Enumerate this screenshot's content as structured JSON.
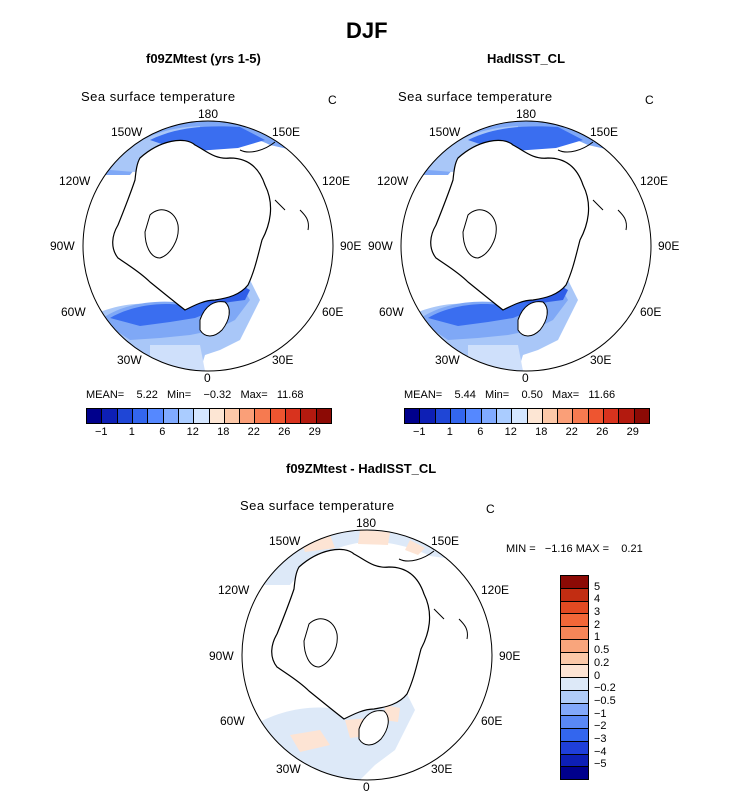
{
  "figure": {
    "title": "DJF"
  },
  "panels": [
    {
      "id": "model",
      "header": "f09ZMtest (yrs 1-5)",
      "variable": "Sea surface temperature",
      "units": "C",
      "stats": {
        "mean_label": "MEAN=",
        "mean": "5.22",
        "min_label": "Min=",
        "min": "−0.32",
        "max_label": "Max=",
        "max": "11.68"
      }
    },
    {
      "id": "obs",
      "header": "HadISST_CL",
      "variable": "Sea surface temperature",
      "units": "C",
      "stats": {
        "mean_label": "MEAN=",
        "mean": "5.44",
        "min_label": "Min=",
        "min": "0.50",
        "max_label": "Max=",
        "max": "11.66"
      }
    },
    {
      "id": "diff",
      "header": "f09ZMtest - HadISST_CL",
      "variable": "Sea surface temperature",
      "units": "C",
      "stats": {
        "min_label": "MIN =",
        "min": "−1.16",
        "max_label": "MAX =",
        "max": "0.21"
      }
    }
  ],
  "map_labels": {
    "top": "180",
    "bottom": "0",
    "left": "90W",
    "right": "90E",
    "upper_left": "150W",
    "upper_right": "150E",
    "mid_upper_left": "120W",
    "mid_upper_right": "120E",
    "mid_lower_left": "60W",
    "mid_lower_right": "60E",
    "lower_left": "30W",
    "lower_right": "30E"
  },
  "colorbar_abs": {
    "colors": [
      "#00008c",
      "#0d1fb5",
      "#1f46d6",
      "#3366ee",
      "#5588ff",
      "#80aaff",
      "#aaccff",
      "#d4e6ff",
      "#fde6d4",
      "#fcc8a8",
      "#fa9f78",
      "#f67a50",
      "#ee5530",
      "#d8331e",
      "#b31a0f",
      "#8c0a05"
    ],
    "tick_labels": [
      "−1",
      "1",
      "6",
      "12",
      "18",
      "22",
      "26",
      "29"
    ]
  },
  "colorbar_diff": {
    "colors": [
      "#00008c",
      "#0d1fb5",
      "#1f3fd9",
      "#3366ee",
      "#5a88f5",
      "#82a8fa",
      "#b0ccf8",
      "#dde9f8",
      "#fde4d4",
      "#fbc8a8",
      "#f9a57c",
      "#f68558",
      "#f26738",
      "#e34a22",
      "#c22d12",
      "#8c0a05"
    ],
    "tick_labels": [
      "5",
      "4",
      "3",
      "2",
      "1",
      "0.5",
      "0.2",
      "0",
      "−0.2",
      "−0.5",
      "−1",
      "−2",
      "−3",
      "−4",
      "−5"
    ]
  }
}
